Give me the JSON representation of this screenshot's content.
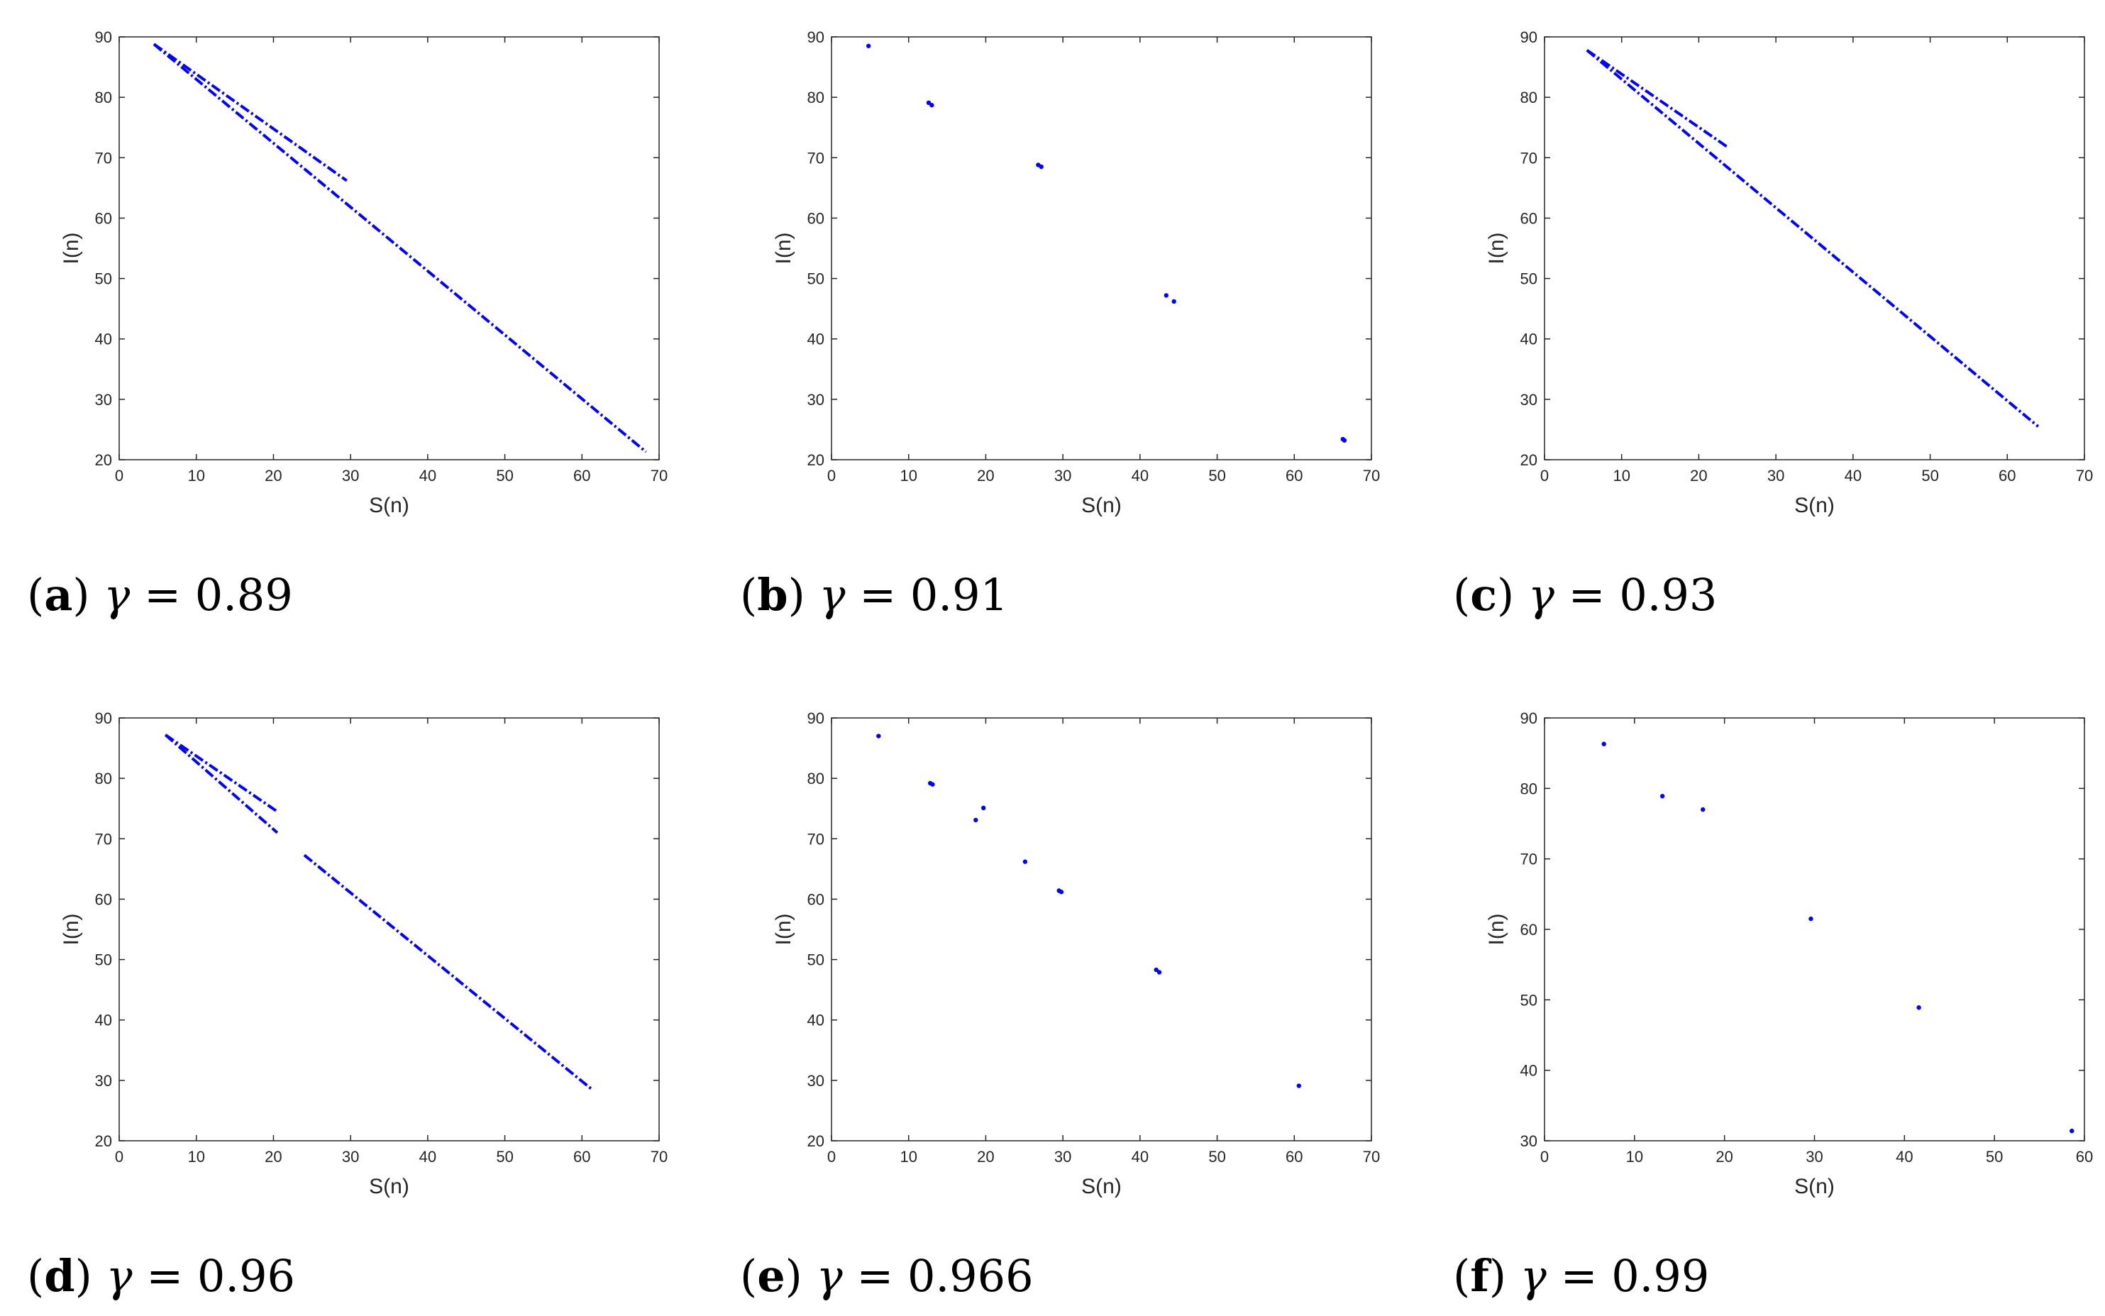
{
  "chart_data": [
    {
      "type": "scatter",
      "id": "a",
      "caption": {
        "letter": "a",
        "variable": "γ",
        "relation": "=",
        "value": "0.89"
      },
      "xlabel": "S(n)",
      "ylabel": "I(n)",
      "xlim": [
        0,
        70
      ],
      "ylim": [
        20,
        90
      ],
      "xticks": [
        0,
        10,
        20,
        30,
        40,
        50,
        60,
        70
      ],
      "yticks": [
        20,
        30,
        40,
        50,
        60,
        70,
        80,
        90
      ],
      "color": "#0000ff",
      "segments": [
        {
          "x0": 4.5,
          "y0": 88.8,
          "x1": 29.5,
          "y1": 66.2
        },
        {
          "x0": 4.5,
          "y0": 88.8,
          "x1": 68.3,
          "y1": 21.3
        }
      ]
    },
    {
      "type": "scatter",
      "id": "b",
      "caption": {
        "letter": "b",
        "variable": "γ",
        "relation": "=",
        "value": "0.91"
      },
      "xlabel": "S(n)",
      "ylabel": "I(n)",
      "xlim": [
        0,
        70
      ],
      "ylim": [
        20,
        90
      ],
      "xticks": [
        0,
        10,
        20,
        30,
        40,
        50,
        60,
        70
      ],
      "yticks": [
        20,
        30,
        40,
        50,
        60,
        70,
        80,
        90
      ],
      "color": "#0000ff",
      "x": [
        4.8,
        12.6,
        13.0,
        26.8,
        27.2,
        43.4,
        44.4,
        66.3,
        66.5
      ],
      "y": [
        88.5,
        79.1,
        78.7,
        68.8,
        68.5,
        47.2,
        46.2,
        23.4,
        23.2
      ]
    },
    {
      "type": "scatter",
      "id": "c",
      "caption": {
        "letter": "c",
        "variable": "γ",
        "relation": "=",
        "value": "0.93"
      },
      "xlabel": "S(n)",
      "ylabel": "I(n)",
      "xlim": [
        0,
        70
      ],
      "ylim": [
        20,
        90
      ],
      "xticks": [
        0,
        10,
        20,
        30,
        40,
        50,
        60,
        70
      ],
      "yticks": [
        20,
        30,
        40,
        50,
        60,
        70,
        80,
        90
      ],
      "color": "#0000ff",
      "segments": [
        {
          "x0": 5.5,
          "y0": 87.8,
          "x1": 23.8,
          "y1": 71.7
        },
        {
          "x0": 5.5,
          "y0": 87.8,
          "x1": 64.0,
          "y1": 25.5
        }
      ]
    },
    {
      "type": "scatter",
      "id": "d",
      "caption": {
        "letter": "d",
        "variable": "γ",
        "relation": "=",
        "value": "0.96"
      },
      "xlabel": "S(n)",
      "ylabel": "I(n)",
      "xlim": [
        0,
        70
      ],
      "ylim": [
        20,
        90
      ],
      "xticks": [
        0,
        10,
        20,
        30,
        40,
        50,
        60,
        70
      ],
      "yticks": [
        20,
        30,
        40,
        50,
        60,
        70,
        80,
        90
      ],
      "color": "#0000ff",
      "segments": [
        {
          "x0": 6.0,
          "y0": 87.2,
          "x1": 20.5,
          "y1": 74.5
        },
        {
          "x0": 6.0,
          "y0": 87.2,
          "x1": 20.5,
          "y1": 71.0
        },
        {
          "x0": 24.0,
          "y0": 67.3,
          "x1": 61.3,
          "y1": 28.5
        }
      ]
    },
    {
      "type": "scatter",
      "id": "e",
      "caption": {
        "letter": "e",
        "variable": "γ",
        "relation": "=",
        "value": "0.966"
      },
      "xlabel": "S(n)",
      "ylabel": "I(n)",
      "xlim": [
        0,
        70
      ],
      "ylim": [
        20,
        90
      ],
      "xticks": [
        0,
        10,
        20,
        30,
        40,
        50,
        60,
        70
      ],
      "yticks": [
        20,
        30,
        40,
        50,
        60,
        70,
        80,
        90
      ],
      "color": "#0000ff",
      "x": [
        6.1,
        12.8,
        13.1,
        18.7,
        19.7,
        25.1,
        29.5,
        29.8,
        42.1,
        42.5,
        60.6
      ],
      "y": [
        87.0,
        79.2,
        79.0,
        73.1,
        75.1,
        66.2,
        61.4,
        61.2,
        48.3,
        47.9,
        29.1
      ]
    },
    {
      "type": "scatter",
      "id": "f",
      "caption": {
        "letter": "f",
        "variable": "γ",
        "relation": "=",
        "value": "0.99"
      },
      "xlabel": "S(n)",
      "ylabel": "I(n)",
      "xlim": [
        0,
        60
      ],
      "ylim": [
        30,
        90
      ],
      "xticks": [
        0,
        10,
        20,
        30,
        40,
        50,
        60
      ],
      "yticks": [
        30,
        40,
        50,
        60,
        70,
        80,
        90
      ],
      "color": "#0000ff",
      "x": [
        6.6,
        13.1,
        17.6,
        29.6,
        41.6,
        58.6
      ],
      "y": [
        86.3,
        78.9,
        77.0,
        61.5,
        48.9,
        31.4
      ]
    }
  ]
}
